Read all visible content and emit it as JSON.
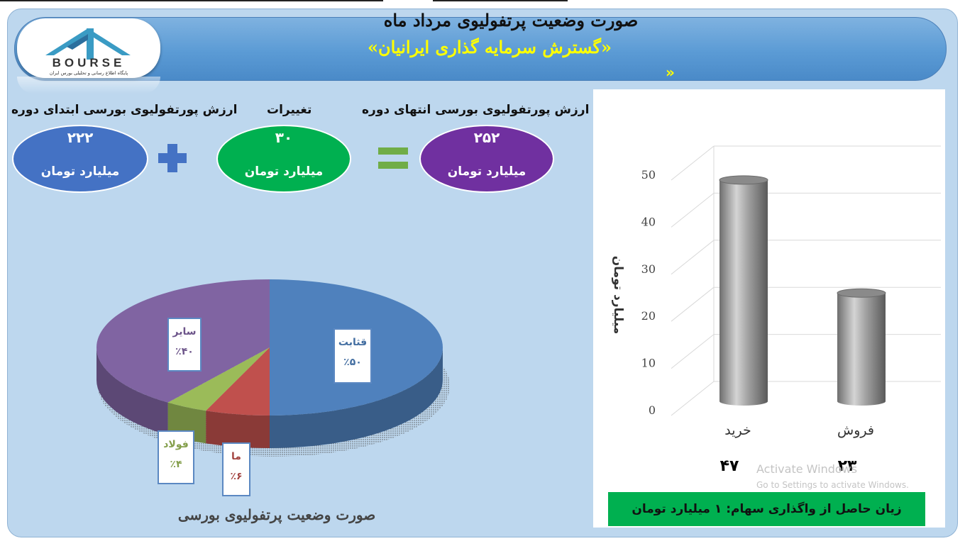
{
  "header": {
    "title_line1": "صورت وضعیت پرتفولیوی مرداد ماه",
    "title_line2": "«گسترش سرمایه گذاری ایرانیان»",
    "stray_quote": "»"
  },
  "logo": {
    "brand_text": "BOURSE",
    "tagline": "پایگاه اطلاع رسانی و تحلیلی بورس ایران"
  },
  "summary": {
    "start_label": "ارزش پورتفولیوی بورسی ابتدای دوره",
    "start_value": "۲۲۲",
    "change_label": "تغییرات",
    "change_value": "۳۰",
    "end_label": "ارزش پورتفولیوی بورسی انتهای دوره",
    "end_value": "۲۵۲",
    "unit": "میلیارد تومان",
    "colors": {
      "start": "#4472c4",
      "change": "#00b050",
      "end": "#7030a0"
    }
  },
  "pie_title": "صورت وضعیت پرتفولیوی بورسی",
  "loss_note": "زیان حاصل از واگذاری سهام: ۱ میلیارد تومان",
  "watermark": {
    "line1": "Activate Windows",
    "line2": "Go to Settings to activate Windows."
  },
  "chart_data": [
    {
      "type": "pie",
      "slices": [
        {
          "label": "قثابت",
          "value": 50,
          "value_label": "٪۵۰",
          "color": "#4f81bd"
        },
        {
          "label": "ما",
          "value": 6,
          "value_label": "٪۶",
          "color": "#c0504d"
        },
        {
          "label": "فولاد",
          "value": 4,
          "value_label": "٪۴",
          "color": "#9bbb59"
        },
        {
          "label": "سایر",
          "value": 40,
          "value_label": "٪۴۰",
          "color": "#8064a2"
        }
      ]
    },
    {
      "type": "bar",
      "categories": [
        "خرید",
        "فروش"
      ],
      "values": [
        47,
        23
      ],
      "value_labels": [
        "۴۷",
        "۲۳"
      ],
      "ylabel": "میلیارد تومان",
      "ylim": [
        0,
        50
      ],
      "yticks": [
        0,
        10,
        20,
        30,
        40,
        50
      ],
      "grid": true,
      "bar_style": "3d-cylinder",
      "color": "#8c8c8c"
    }
  ]
}
